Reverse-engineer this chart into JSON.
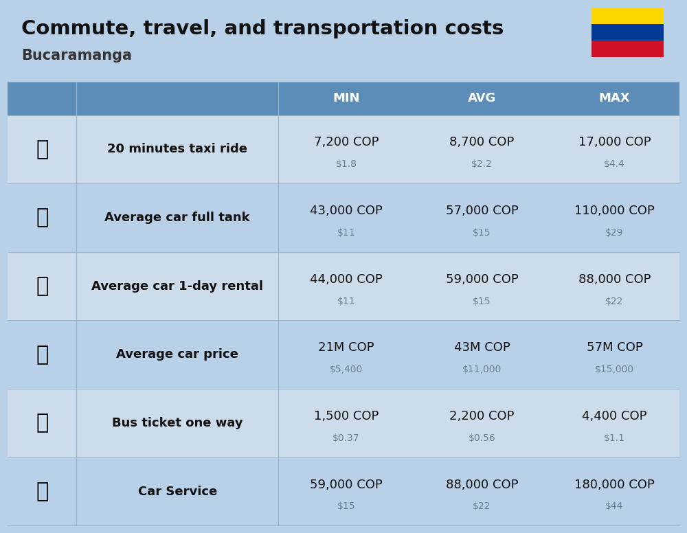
{
  "title": "Commute, travel, and transportation costs",
  "subtitle": "Bucaramanga",
  "background_color": "#b8d0e8",
  "header_color": "#5b8db8",
  "header_text_color": "#ffffff",
  "row_colors": [
    "#cddceb",
    "#b8d0e8"
  ],
  "col_headers": [
    "MIN",
    "AVG",
    "MAX"
  ],
  "rows": [
    {
      "label": "20 minutes taxi ride",
      "min_cop": "7,200 COP",
      "min_usd": "$1.8",
      "avg_cop": "8,700 COP",
      "avg_usd": "$2.2",
      "max_cop": "17,000 COP",
      "max_usd": "$4.4"
    },
    {
      "label": "Average car full tank",
      "min_cop": "43,000 COP",
      "min_usd": "$11",
      "avg_cop": "57,000 COP",
      "avg_usd": "$15",
      "max_cop": "110,000 COP",
      "max_usd": "$29"
    },
    {
      "label": "Average car 1-day rental",
      "min_cop": "44,000 COP",
      "min_usd": "$11",
      "avg_cop": "59,000 COP",
      "avg_usd": "$15",
      "max_cop": "88,000 COP",
      "max_usd": "$22"
    },
    {
      "label": "Average car price",
      "min_cop": "21M COP",
      "min_usd": "$5,400",
      "avg_cop": "43M COP",
      "avg_usd": "$11,000",
      "max_cop": "57M COP",
      "max_usd": "$15,000"
    },
    {
      "label": "Bus ticket one way",
      "min_cop": "1,500 COP",
      "min_usd": "$0.37",
      "avg_cop": "2,200 COP",
      "avg_usd": "$0.56",
      "max_cop": "4,400 COP",
      "max_usd": "$1.1"
    },
    {
      "label": "Car Service",
      "min_cop": "59,000 COP",
      "min_usd": "$15",
      "avg_cop": "88,000 COP",
      "avg_usd": "$22",
      "max_cop": "180,000 COP",
      "max_usd": "$44"
    }
  ],
  "flag_colors": [
    "#FFD700",
    "#003893",
    "#CE1126"
  ],
  "cop_fontsize": 13,
  "usd_fontsize": 10,
  "label_fontsize": 13,
  "header_fontsize": 13
}
